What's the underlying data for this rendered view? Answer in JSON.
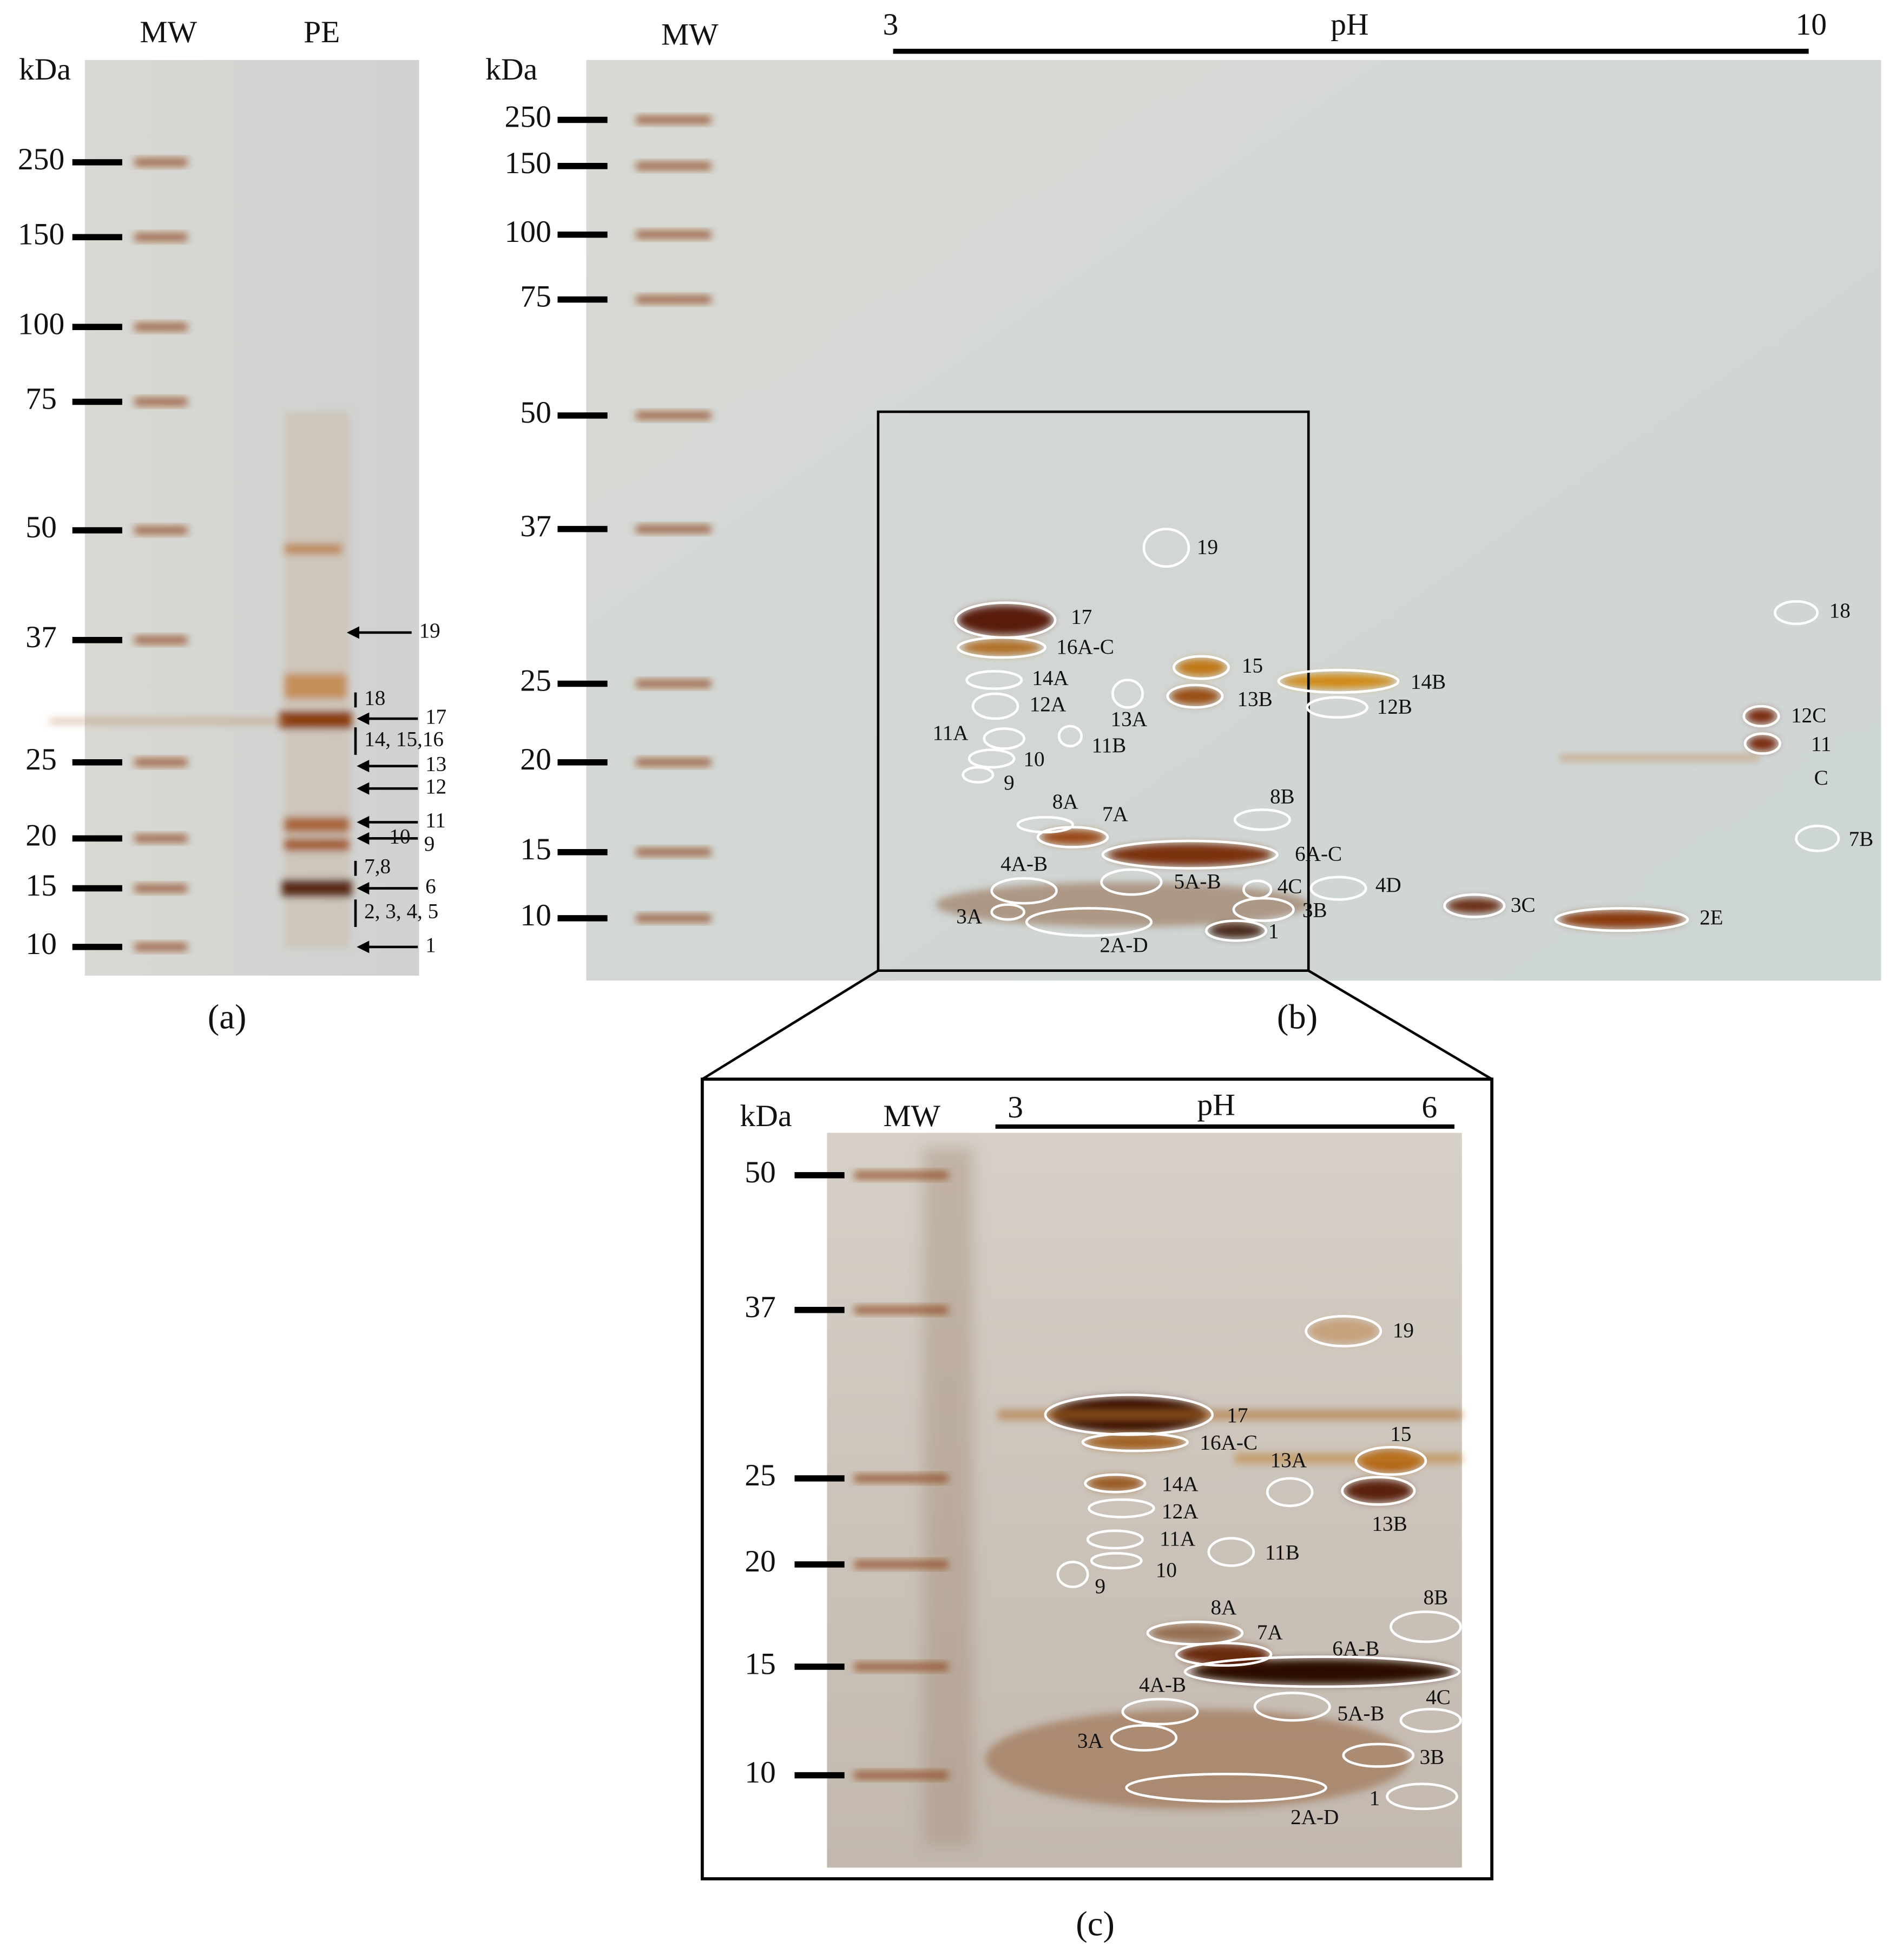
{
  "panel_a": {
    "kda_label": "kDa",
    "lanes": [
      "MW",
      "PE"
    ],
    "markers": [
      "250",
      "150",
      "100",
      "75",
      "50",
      "37",
      "25",
      "20",
      "15",
      "10"
    ],
    "bands": [
      "19",
      "18",
      "17",
      "14, 15,16",
      "13",
      "12",
      "11",
      "10",
      "9",
      "7,8",
      "6",
      "2, 3, 4, 5",
      "1"
    ],
    "caption": "(a)"
  },
  "panel_b": {
    "kda_label": "kDa",
    "lane": "MW",
    "ph_label": "pH",
    "ph_range": [
      "3",
      "10"
    ],
    "markers": [
      "250",
      "150",
      "100",
      "75",
      "50",
      "37",
      "25",
      "20",
      "15",
      "10"
    ],
    "spots": [
      "19",
      "17",
      "16A-C",
      "14A",
      "12A",
      "13A",
      "11A",
      "11B",
      "10",
      "9",
      "15",
      "13B",
      "14B",
      "12B",
      "18",
      "12C",
      "11",
      "C",
      "7B",
      "8B",
      "8A",
      "7A",
      "6A-C",
      "4A-B",
      "5A-B",
      "4C",
      "4D",
      "3B",
      "3A",
      "2A-D",
      "1",
      "3C",
      "2E"
    ],
    "caption": "(b)"
  },
  "panel_c": {
    "kda_label": "kDa",
    "lane": "MW",
    "ph_label": "pH",
    "ph_range": [
      "3",
      "6"
    ],
    "markers": [
      "50",
      "37",
      "25",
      "20",
      "15",
      "10"
    ],
    "spots": [
      "19",
      "17",
      "16A-C",
      "15",
      "13A",
      "13B",
      "14A",
      "12A",
      "11A",
      "11B",
      "10",
      "9",
      "8A",
      "8B",
      "7A",
      "6A-B",
      "4A-B",
      "5A-B",
      "4C",
      "3A",
      "3B",
      "2A-D",
      "1"
    ],
    "caption": "(c)"
  }
}
